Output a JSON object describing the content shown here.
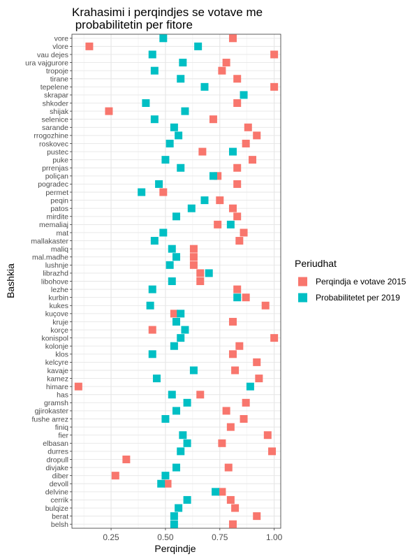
{
  "chart_data": {
    "type": "scatter",
    "title_lines": [
      "Krahasimi i perqindjes se votave me",
      " probabilitetin per fitore"
    ],
    "xlabel": "Perqindje",
    "ylabel": "Bashkia",
    "xlim": [
      0.07,
      1.03
    ],
    "xticks": [
      0.25,
      0.5,
      0.75,
      1.0
    ],
    "xtick_labels": [
      "0.25",
      "0.50",
      "0.75",
      "1.00"
    ],
    "grid": true,
    "legend_position": "right",
    "legend_title": "Periudhat",
    "categories": [
      "vore",
      "vlore",
      "vau dejes",
      "ura vajgurore",
      "tropoje",
      "tirane",
      "tepelene",
      "skrapar",
      "shkoder",
      "shijak",
      "selenice",
      "sarande",
      "rrogozhine",
      "roskovec",
      "pustec",
      "puke",
      "prrenjas",
      "poliçan",
      "pogradec",
      "permet",
      "peqin",
      "patos",
      "mirdite",
      "memaliaj",
      "mat",
      "mallakaster",
      "maliq",
      "mal.madhe",
      "lushnje",
      "librazhd",
      "libohove",
      "lezhe",
      "kurbin",
      "kukes",
      "kuçove",
      "kruje",
      "korçe",
      "konispol",
      "kolonje",
      "klos",
      "kelcyre",
      "kavaje",
      "kamez",
      "himare",
      "has",
      "gramsh",
      "gjirokaster",
      "fushe arrez",
      "finiq",
      "fier",
      "elbasan",
      "durres",
      "dropull",
      "divjake",
      "diber",
      "devoll",
      "delvine",
      "cerrik",
      "bulqize",
      "berat",
      "belsh"
    ],
    "series": [
      {
        "name": "Perqindja e votave 2015",
        "color": "#F8766D",
        "values": [
          0.81,
          0.15,
          1.0,
          0.78,
          0.76,
          0.83,
          1.0,
          null,
          0.83,
          0.24,
          0.72,
          0.88,
          0.92,
          0.87,
          0.67,
          0.9,
          0.83,
          0.74,
          0.83,
          0.49,
          0.75,
          0.81,
          0.83,
          0.74,
          0.86,
          0.84,
          0.63,
          0.63,
          0.63,
          0.66,
          0.66,
          0.83,
          0.87,
          0.96,
          0.54,
          0.81,
          0.44,
          1.0,
          0.84,
          0.81,
          0.92,
          0.82,
          0.93,
          0.1,
          0.66,
          0.87,
          0.78,
          0.86,
          0.8,
          0.97,
          0.76,
          0.99,
          0.32,
          0.79,
          0.27,
          0.51,
          0.76,
          0.8,
          0.82,
          0.92,
          0.81
        ]
      },
      {
        "name": "Probabilitetet per 2019",
        "color": "#00BFC4",
        "values": [
          0.49,
          0.65,
          0.44,
          0.58,
          0.45,
          0.57,
          0.68,
          0.86,
          0.41,
          0.59,
          0.45,
          0.54,
          0.56,
          0.52,
          0.81,
          0.5,
          0.57,
          0.72,
          0.47,
          0.39,
          0.68,
          0.62,
          0.55,
          0.8,
          0.49,
          0.45,
          0.53,
          0.55,
          0.52,
          0.7,
          0.53,
          0.44,
          0.83,
          0.43,
          0.57,
          0.55,
          0.59,
          0.57,
          0.54,
          0.44,
          null,
          0.63,
          0.46,
          0.89,
          0.53,
          0.6,
          0.55,
          0.5,
          null,
          0.58,
          0.6,
          0.57,
          null,
          0.55,
          0.5,
          0.48,
          0.73,
          0.6,
          0.56,
          0.54,
          0.54
        ]
      }
    ]
  }
}
